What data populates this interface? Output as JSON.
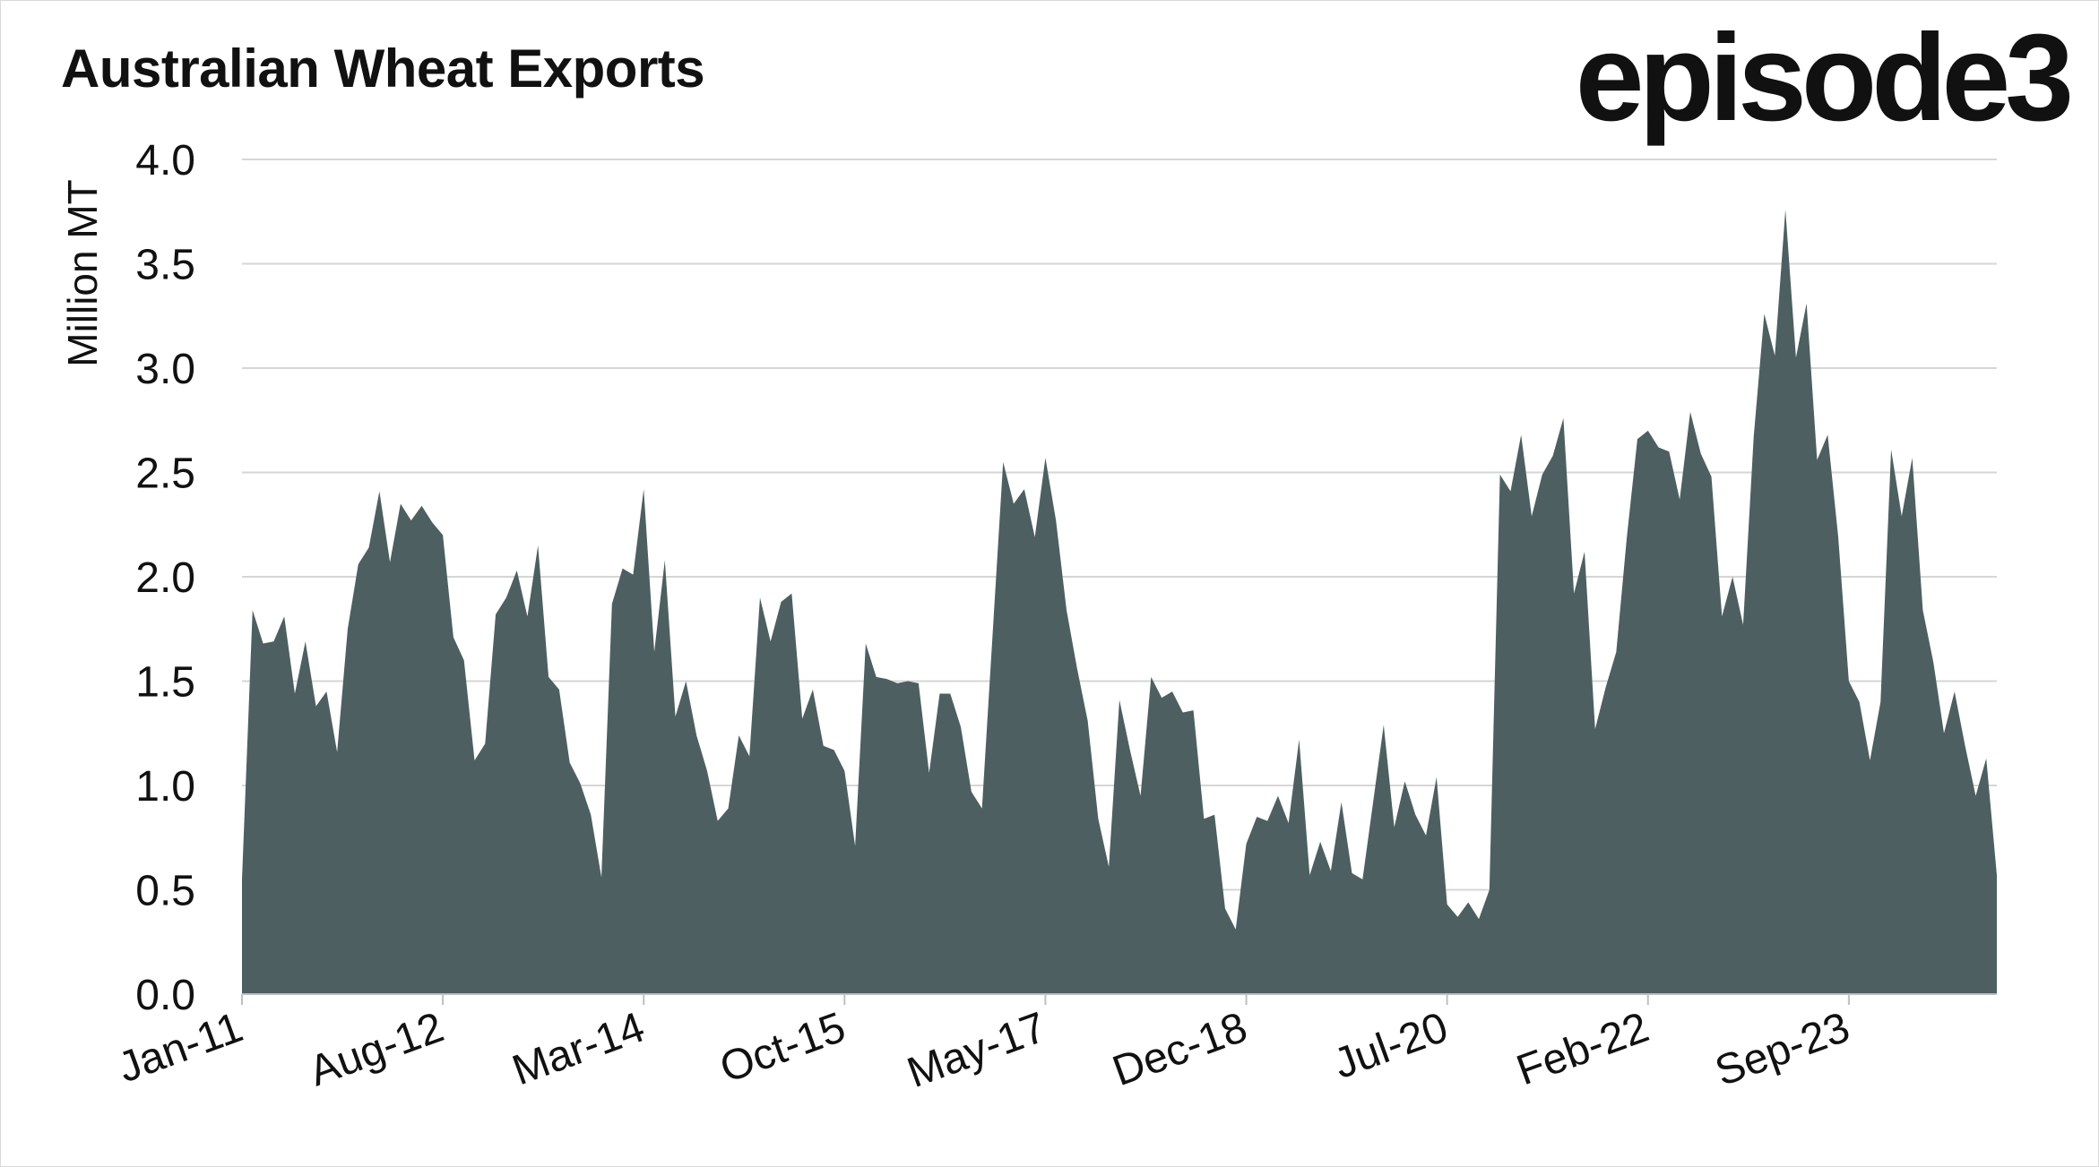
{
  "title": "Australian Wheat Exports",
  "logo": "episode3",
  "colors": {
    "area": "#4d5f61",
    "grid": "#d6d6d6",
    "axis": "#bfbfbf",
    "text": "#111111"
  },
  "chart_data": {
    "type": "area",
    "title": "Australian Wheat Exports",
    "xlabel": "",
    "ylabel": "Million MT",
    "ylim": [
      0,
      4
    ],
    "yticks": [
      "0.0",
      "0.5",
      "1.0",
      "1.5",
      "2.0",
      "2.5",
      "3.0",
      "3.5",
      "4.0"
    ],
    "xtick_labels": [
      "Jan-11",
      "Aug-12",
      "Mar-14",
      "Oct-15",
      "May-17",
      "Dec-18",
      "Jul-20",
      "Feb-22",
      "Sep-23"
    ],
    "grid": true,
    "legend": "none",
    "x_start": "Jan-11",
    "frequency": "monthly",
    "series": [
      {
        "values": [
          0.55,
          1.84,
          1.68,
          1.69,
          1.81,
          1.44,
          1.69,
          1.38,
          1.45,
          1.16,
          1.75,
          2.06,
          2.14,
          2.41,
          2.07,
          2.35,
          2.27,
          2.34,
          2.26,
          2.2,
          1.71,
          1.6,
          1.12,
          1.2,
          1.82,
          1.9,
          2.03,
          1.81,
          2.15,
          1.52,
          1.46,
          1.11,
          1.01,
          0.86,
          0.56,
          1.87,
          2.04,
          2.01,
          2.42,
          1.64,
          2.08,
          1.33,
          1.5,
          1.24,
          1.07,
          0.83,
          0.89,
          1.24,
          1.14,
          1.9,
          1.69,
          1.88,
          1.92,
          1.32,
          1.46,
          1.19,
          1.17,
          1.07,
          0.71,
          1.68,
          1.52,
          1.51,
          1.49,
          1.5,
          1.49,
          1.06,
          1.44,
          1.44,
          1.28,
          0.97,
          0.89,
          1.72,
          2.55,
          2.35,
          2.42,
          2.19,
          2.57,
          2.27,
          1.84,
          1.56,
          1.31,
          0.84,
          0.61,
          1.41,
          1.17,
          0.95,
          1.52,
          1.42,
          1.45,
          1.35,
          1.36,
          0.84,
          0.86,
          0.41,
          0.31,
          0.72,
          0.85,
          0.83,
          0.95,
          0.82,
          1.22,
          0.57,
          0.73,
          0.59,
          0.92,
          0.58,
          0.55,
          0.92,
          1.29,
          0.8,
          1.02,
          0.86,
          0.76,
          1.04,
          0.43,
          0.37,
          0.44,
          0.36,
          0.5,
          2.49,
          2.41,
          2.68,
          2.29,
          2.49,
          2.58,
          2.76,
          1.92,
          2.12,
          1.27,
          1.47,
          1.64,
          2.19,
          2.66,
          2.7,
          2.62,
          2.6,
          2.37,
          2.79,
          2.59,
          2.48,
          1.81,
          2.0,
          1.77,
          2.67,
          3.26,
          3.06,
          3.76,
          3.05,
          3.31,
          2.56,
          2.68,
          2.19,
          1.5,
          1.4,
          1.12,
          1.4,
          2.61,
          2.29,
          2.57,
          1.84,
          1.59,
          1.25,
          1.45,
          1.19,
          0.95,
          1.13,
          0.57
        ]
      }
    ]
  }
}
